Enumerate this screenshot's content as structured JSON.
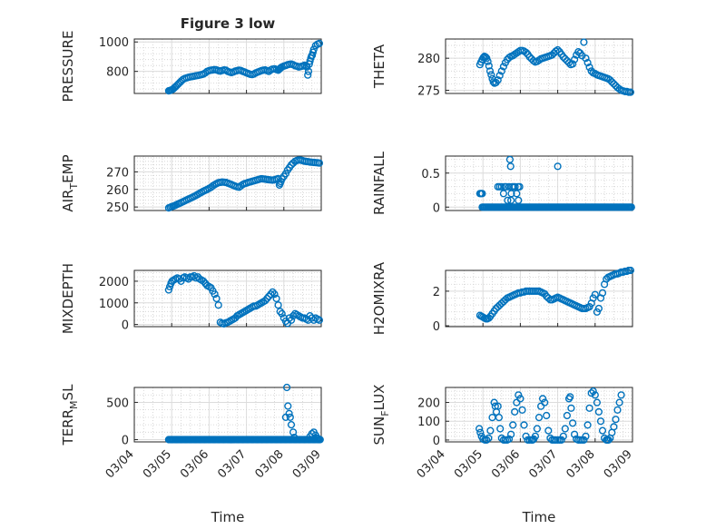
{
  "figure": {
    "title": "Figure 3 low",
    "marker_color": "#0072BD"
  },
  "chart_data": [
    {
      "type": "scatter",
      "ylabel": "PRESSURE",
      "xlim": [
        0,
        5
      ],
      "ylim": [
        650,
        1020
      ],
      "yticks": [
        800,
        1000
      ],
      "x_tick_labels": [],
      "x": [
        0.92,
        0.95,
        0.98,
        1.01,
        1.04,
        1.07,
        1.1,
        1.14,
        1.18,
        1.22,
        1.26,
        1.3,
        1.35,
        1.4,
        1.45,
        1.5,
        1.55,
        1.6,
        1.65,
        1.7,
        1.75,
        1.8,
        1.85,
        1.9,
        1.95,
        2.0,
        2.05,
        2.1,
        2.15,
        2.2,
        2.25,
        2.3,
        2.35,
        2.4,
        2.45,
        2.5,
        2.55,
        2.6,
        2.65,
        2.7,
        2.75,
        2.8,
        2.85,
        2.9,
        2.95,
        3.0,
        3.05,
        3.1,
        3.15,
        3.2,
        3.25,
        3.3,
        3.35,
        3.4,
        3.45,
        3.5,
        3.55,
        3.6,
        3.65,
        3.7,
        3.75,
        3.8,
        3.85,
        3.88,
        3.9,
        3.92,
        3.95,
        4.0,
        4.05,
        4.1,
        4.15,
        4.2,
        4.25,
        4.3,
        4.35,
        4.4,
        4.45,
        4.5,
        4.55,
        4.6,
        4.62,
        4.64,
        4.66,
        4.68,
        4.7,
        4.72,
        4.74,
        4.76,
        4.78,
        4.8,
        4.85,
        4.9,
        4.95
      ],
      "y": [
        668,
        670,
        672,
        675,
        680,
        688,
        695,
        705,
        715,
        725,
        735,
        745,
        752,
        756,
        760,
        763,
        765,
        767,
        770,
        772,
        775,
        778,
        782,
        790,
        800,
        805,
        808,
        810,
        812,
        810,
        805,
        802,
        806,
        810,
        808,
        800,
        795,
        792,
        796,
        802,
        805,
        808,
        806,
        800,
        796,
        790,
        785,
        780,
        778,
        782,
        790,
        795,
        800,
        805,
        808,
        810,
        805,
        800,
        810,
        815,
        818,
        812,
        808,
        815,
        820,
        825,
        830,
        836,
        840,
        845,
        848,
        850,
        845,
        838,
        835,
        830,
        833,
        836,
        842,
        838,
        830,
        775,
        800,
        850,
        870,
        890,
        905,
        910,
        930,
        950,
        975,
        985,
        990
      ],
      "y_extra_note": ""
    },
    {
      "type": "scatter",
      "ylabel": "THETA",
      "xlim": [
        0,
        5
      ],
      "ylim": [
        274.5,
        283
      ],
      "yticks": [
        275,
        280
      ],
      "x_tick_labels": [],
      "x": [
        0.92,
        0.95,
        0.98,
        1.01,
        1.04,
        1.07,
        1.1,
        1.13,
        1.16,
        1.19,
        1.22,
        1.25,
        1.28,
        1.31,
        1.35,
        1.4,
        1.45,
        1.5,
        1.55,
        1.6,
        1.65,
        1.7,
        1.75,
        1.8,
        1.85,
        1.9,
        1.95,
        2.0,
        2.05,
        2.1,
        2.15,
        2.2,
        2.25,
        2.3,
        2.35,
        2.4,
        2.45,
        2.5,
        2.55,
        2.6,
        2.65,
        2.7,
        2.75,
        2.8,
        2.85,
        2.9,
        2.95,
        3.0,
        3.05,
        3.1,
        3.15,
        3.2,
        3.25,
        3.3,
        3.35,
        3.4,
        3.45,
        3.5,
        3.55,
        3.6,
        3.65,
        3.7,
        3.75,
        3.8,
        3.85,
        3.9,
        3.95,
        4.0,
        4.05,
        4.1,
        4.15,
        4.2,
        4.25,
        4.3,
        4.35,
        4.4,
        4.45,
        4.5,
        4.55,
        4.6,
        4.65,
        4.7,
        4.75,
        4.8,
        4.85,
        4.9,
        4.95
      ],
      "y": [
        279.0,
        279.4,
        279.8,
        280.1,
        280.3,
        280.2,
        280.0,
        279.5,
        278.8,
        278.0,
        277.4,
        276.8,
        276.3,
        276.1,
        276.2,
        276.6,
        277.3,
        278.0,
        278.7,
        279.3,
        279.8,
        280.1,
        280.3,
        280.4,
        280.6,
        280.8,
        281.0,
        281.2,
        281.2,
        281.1,
        280.9,
        280.6,
        280.2,
        279.9,
        279.6,
        279.4,
        279.5,
        279.7,
        279.9,
        280.0,
        280.1,
        280.2,
        280.3,
        280.4,
        280.5,
        280.8,
        281.1,
        281.3,
        281.0,
        280.6,
        280.2,
        279.9,
        279.6,
        279.3,
        279.0,
        279.1,
        279.8,
        280.5,
        281.0,
        280.8,
        280.4,
        282.5,
        280.0,
        279.3,
        278.6,
        278.0,
        277.7,
        277.6,
        277.4,
        277.3,
        277.2,
        277.1,
        277.0,
        276.9,
        276.8,
        276.6,
        276.3,
        276.0,
        275.7,
        275.4,
        275.2,
        275.0,
        274.9,
        274.8,
        274.8,
        274.7,
        274.7
      ],
      "y_extra_note": ""
    },
    {
      "type": "scatter",
      "ylabel": "AIR_TEMP",
      "ylabel_display": [
        "AIR",
        "T",
        "EMP"
      ],
      "xlim": [
        0,
        5
      ],
      "ylim": [
        248,
        279
      ],
      "yticks": [
        250,
        260,
        270
      ],
      "x_tick_labels": [],
      "x": [
        0.92,
        0.96,
        1.0,
        1.04,
        1.08,
        1.12,
        1.16,
        1.2,
        1.25,
        1.3,
        1.35,
        1.4,
        1.45,
        1.5,
        1.55,
        1.6,
        1.65,
        1.7,
        1.75,
        1.8,
        1.85,
        1.9,
        1.95,
        2.0,
        2.05,
        2.1,
        2.15,
        2.2,
        2.25,
        2.3,
        2.35,
        2.4,
        2.45,
        2.5,
        2.55,
        2.6,
        2.65,
        2.7,
        2.75,
        2.8,
        2.85,
        2.9,
        2.95,
        3.0,
        3.05,
        3.1,
        3.15,
        3.2,
        3.25,
        3.3,
        3.35,
        3.4,
        3.45,
        3.5,
        3.55,
        3.6,
        3.65,
        3.7,
        3.75,
        3.8,
        3.85,
        3.88,
        3.9,
        3.92,
        3.95,
        4.0,
        4.05,
        4.1,
        4.15,
        4.2,
        4.25,
        4.3,
        4.35,
        4.4,
        4.45,
        4.5,
        4.55,
        4.6,
        4.65,
        4.7,
        4.75,
        4.8,
        4.85,
        4.9,
        4.95
      ],
      "y": [
        249.5,
        249.8,
        250.2,
        250.5,
        250.8,
        251.2,
        251.6,
        252.0,
        252.5,
        253.0,
        253.5,
        254.0,
        254.5,
        255.0,
        255.5,
        256.0,
        256.6,
        257.2,
        257.8,
        258.4,
        259.0,
        259.5,
        260.0,
        260.6,
        261.2,
        262.0,
        262.7,
        263.3,
        263.8,
        264.0,
        264.2,
        264.1,
        264.0,
        263.6,
        263.2,
        262.8,
        262.3,
        261.9,
        261.5,
        261.3,
        262.0,
        262.8,
        263.3,
        263.6,
        264.0,
        264.3,
        264.6,
        264.9,
        265.2,
        265.5,
        265.8,
        266.1,
        266.0,
        265.8,
        265.6,
        265.5,
        265.4,
        265.3,
        265.5,
        265.8,
        266.2,
        262.5,
        263.5,
        264.5,
        266.0,
        267.5,
        269.0,
        271.0,
        272.5,
        274.0,
        275.0,
        276.0,
        276.5,
        276.8,
        276.7,
        276.4,
        276.1,
        275.9,
        275.8,
        275.6,
        275.5,
        275.4,
        275.3,
        275.2,
        275.0
      ],
      "y_extra_note": ""
    },
    {
      "type": "scatter",
      "ylabel": "RAINFALL",
      "xlim": [
        0,
        5
      ],
      "ylim": [
        -0.05,
        0.75
      ],
      "yticks": [
        0,
        0.5
      ],
      "x_tick_labels": [],
      "x_zero_from": 0.98,
      "x_zero_to": 4.97,
      "x_zero_step": 0.03,
      "x": [
        0.92,
        0.95,
        0.98,
        1.4,
        1.45,
        1.5,
        1.55,
        1.58,
        1.62,
        1.66,
        1.7,
        1.72,
        1.74,
        1.76,
        1.78,
        1.82,
        1.86,
        1.9,
        1.94,
        1.98,
        1.75,
        1.95,
        3.0
      ],
      "y": [
        0.2,
        0.2,
        0.2,
        0.3,
        0.3,
        0.3,
        0.2,
        0.3,
        0.3,
        0.1,
        0.3,
        0.7,
        0.6,
        0.2,
        0.3,
        0.3,
        0.3,
        0.2,
        0.3,
        0.3,
        0.1,
        0.1,
        0.6
      ],
      "y_extra_note": ""
    },
    {
      "type": "scatter",
      "ylabel": "MIXDEPTH",
      "xlim": [
        0,
        5
      ],
      "ylim": [
        -100,
        2500
      ],
      "yticks": [
        0,
        1000,
        2000
      ],
      "x_tick_labels": [],
      "x": [
        0.92,
        0.95,
        0.98,
        1.01,
        1.05,
        1.1,
        1.15,
        1.2,
        1.25,
        1.3,
        1.35,
        1.4,
        1.45,
        1.5,
        1.55,
        1.6,
        1.65,
        1.7,
        1.75,
        1.8,
        1.85,
        1.9,
        1.95,
        2.0,
        2.05,
        2.1,
        2.15,
        2.2,
        2.25,
        2.3,
        2.35,
        2.4,
        2.45,
        2.5,
        2.55,
        2.6,
        2.65,
        2.7,
        2.75,
        2.8,
        2.85,
        2.9,
        2.95,
        3.0,
        3.05,
        3.1,
        3.15,
        3.2,
        3.25,
        3.3,
        3.35,
        3.4,
        3.45,
        3.5,
        3.55,
        3.6,
        3.65,
        3.7,
        3.75,
        3.8,
        3.85,
        3.9,
        3.95,
        4.0,
        4.05,
        4.1,
        4.15,
        4.2,
        4.25,
        4.3,
        4.35,
        4.4,
        4.45,
        4.5,
        4.55,
        4.6,
        4.65,
        4.7,
        4.75,
        4.8,
        4.85,
        4.9,
        4.95
      ],
      "y": [
        1600,
        1750,
        1900,
        2000,
        2050,
        2100,
        2150,
        2100,
        2000,
        2150,
        2200,
        2150,
        2100,
        2200,
        2200,
        2250,
        2150,
        2200,
        2100,
        2050,
        2000,
        1900,
        1800,
        1750,
        1700,
        1550,
        1400,
        1200,
        900,
        100,
        50,
        30,
        80,
        100,
        150,
        200,
        250,
        300,
        400,
        450,
        500,
        550,
        600,
        650,
        700,
        750,
        800,
        850,
        850,
        900,
        950,
        1000,
        1050,
        1100,
        1200,
        1300,
        1400,
        1500,
        1400,
        1200,
        900,
        600,
        500,
        300,
        150,
        50,
        300,
        200,
        400,
        500,
        450,
        400,
        350,
        300,
        300,
        250,
        200,
        400,
        300,
        200,
        300,
        250,
        200
      ],
      "y_extra_note": ""
    },
    {
      "type": "scatter",
      "ylabel": "H2OMIXRA",
      "xlim": [
        0,
        5
      ],
      "ylim": [
        -0.05,
        3.2
      ],
      "yticks": [
        0,
        2
      ],
      "x_tick_labels": [],
      "x": [
        0.92,
        0.96,
        1.0,
        1.04,
        1.08,
        1.12,
        1.16,
        1.2,
        1.25,
        1.3,
        1.35,
        1.4,
        1.45,
        1.5,
        1.55,
        1.6,
        1.65,
        1.7,
        1.75,
        1.8,
        1.85,
        1.9,
        1.95,
        2.0,
        2.05,
        2.1,
        2.15,
        2.2,
        2.25,
        2.3,
        2.35,
        2.4,
        2.45,
        2.5,
        2.55,
        2.6,
        2.65,
        2.7,
        2.75,
        2.8,
        2.85,
        2.9,
        2.95,
        3.0,
        3.05,
        3.1,
        3.15,
        3.2,
        3.25,
        3.3,
        3.35,
        3.4,
        3.45,
        3.5,
        3.55,
        3.6,
        3.65,
        3.7,
        3.75,
        3.8,
        3.85,
        3.9,
        3.95,
        4.0,
        4.05,
        4.1,
        4.15,
        4.2,
        4.25,
        4.3,
        4.35,
        4.4,
        4.45,
        4.5,
        4.55,
        4.6,
        4.65,
        4.7,
        4.75,
        4.8,
        4.85,
        4.9,
        4.95
      ],
      "y": [
        0.6,
        0.55,
        0.5,
        0.45,
        0.4,
        0.4,
        0.45,
        0.55,
        0.7,
        0.85,
        1.0,
        1.1,
        1.2,
        1.3,
        1.4,
        1.5,
        1.6,
        1.65,
        1.7,
        1.75,
        1.8,
        1.85,
        1.9,
        1.9,
        1.95,
        1.95,
        2.0,
        2.0,
        2.0,
        2.0,
        2.0,
        2.0,
        2.0,
        2.0,
        1.95,
        1.9,
        1.85,
        1.7,
        1.6,
        1.5,
        1.5,
        1.55,
        1.6,
        1.65,
        1.6,
        1.55,
        1.5,
        1.45,
        1.4,
        1.35,
        1.3,
        1.25,
        1.2,
        1.15,
        1.1,
        1.05,
        1.0,
        1.0,
        1.0,
        1.05,
        1.1,
        1.3,
        1.6,
        1.8,
        0.8,
        1.0,
        1.6,
        1.9,
        2.4,
        2.7,
        2.8,
        2.85,
        2.9,
        2.95,
        3.0,
        3.0,
        3.05,
        3.1,
        3.1,
        3.15,
        3.15,
        3.2,
        3.2
      ],
      "y_extra_note": ""
    },
    {
      "type": "scatter",
      "ylabel": "TERR_MSL",
      "ylabel_display": [
        "TERR",
        "M",
        "SL"
      ],
      "xlim": [
        0,
        5
      ],
      "ylim": [
        -30,
        700
      ],
      "yticks": [
        0,
        500
      ],
      "x_tick_labels": [
        "03/04",
        "03/05",
        "03/06",
        "03/07",
        "03/08",
        "03/09"
      ],
      "xlabel": "Time",
      "x_zero_from": 0.92,
      "x_zero_to": 4.97,
      "x_zero_step": 0.03,
      "x": [
        4.05,
        4.08,
        4.11,
        4.14,
        4.17,
        4.2,
        4.25,
        4.28,
        4.7,
        4.75,
        4.8,
        4.85,
        4.9
      ],
      "y": [
        300,
        700,
        450,
        350,
        300,
        200,
        100,
        30,
        40,
        80,
        100,
        60,
        20
      ],
      "y_extra_note": ""
    },
    {
      "type": "scatter",
      "ylabel": "SUN_FLUX",
      "ylabel_display": [
        "SUN",
        "F",
        "LUX"
      ],
      "xlim": [
        0,
        5
      ],
      "ylim": [
        -10,
        280
      ],
      "yticks": [
        0,
        100,
        200
      ],
      "x_tick_labels": [
        "03/04",
        "03/05",
        "03/06",
        "03/07",
        "03/08",
        "03/09"
      ],
      "xlabel": "Time",
      "x": [
        0.9,
        0.93,
        0.96,
        1.0,
        1.05,
        1.1,
        1.15,
        1.2,
        1.25,
        1.3,
        1.33,
        1.36,
        1.4,
        1.43,
        1.46,
        1.5,
        1.55,
        1.6,
        1.65,
        1.7,
        1.75,
        1.8,
        1.85,
        1.9,
        1.95,
        2.0,
        2.05,
        2.1,
        2.15,
        2.2,
        2.25,
        2.3,
        2.33,
        2.36,
        2.4,
        2.45,
        2.5,
        2.55,
        2.6,
        2.65,
        2.7,
        2.75,
        2.8,
        2.85,
        2.9,
        2.95,
        3.0,
        3.05,
        3.1,
        3.15,
        3.2,
        3.25,
        3.3,
        3.33,
        3.36,
        3.4,
        3.45,
        3.5,
        3.55,
        3.6,
        3.65,
        3.7,
        3.75,
        3.8,
        3.85,
        3.9,
        3.95,
        4.0,
        4.05,
        4.1,
        4.15,
        4.2,
        4.25,
        4.3,
        4.33,
        4.36,
        4.4,
        4.45,
        4.5,
        4.55,
        4.6,
        4.65,
        4.7
      ],
      "y": [
        60,
        40,
        20,
        5,
        0,
        0,
        10,
        50,
        120,
        200,
        180,
        150,
        180,
        120,
        60,
        10,
        0,
        0,
        0,
        5,
        30,
        80,
        150,
        200,
        240,
        220,
        160,
        80,
        20,
        0,
        0,
        0,
        0,
        5,
        20,
        60,
        120,
        180,
        220,
        200,
        130,
        50,
        10,
        0,
        0,
        0,
        0,
        0,
        0,
        20,
        60,
        130,
        220,
        230,
        170,
        90,
        30,
        5,
        0,
        0,
        0,
        0,
        20,
        80,
        170,
        250,
        260,
        240,
        200,
        150,
        100,
        50,
        10,
        0,
        0,
        0,
        10,
        40,
        70,
        110,
        160,
        200,
        240
      ],
      "y_extra_note": ""
    }
  ]
}
